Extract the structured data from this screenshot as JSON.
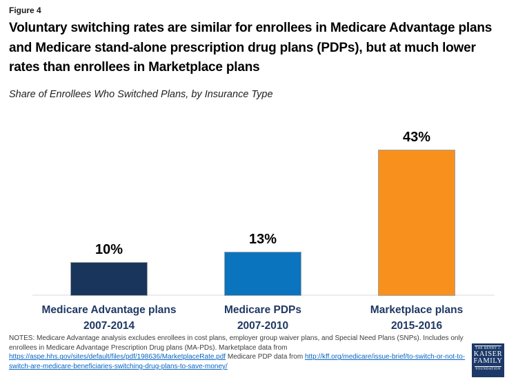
{
  "figure_label": "Figure 4",
  "title": "Voluntary switching rates are similar for enrollees in Medicare Advantage plans and Medicare stand-alone prescription drug plans (PDPs), but at much lower rates than enrollees in Marketplace plans",
  "subtitle": "Share of Enrollees Who Switched Plans, by Insurance Type",
  "chart_data": {
    "type": "bar",
    "title": "Share of Enrollees Who Switched Plans, by Insurance Type",
    "categories": [
      "Medicare Advantage plans 2007-2014",
      "Medicare PDPs 2007-2010",
      "Marketplace plans 2015-2016"
    ],
    "values": [
      10,
      13,
      43
    ],
    "value_labels": [
      "10%",
      "13%",
      "43%"
    ],
    "xlabel": "",
    "ylabel": "",
    "ylim": [
      0,
      47
    ],
    "grid": false,
    "legend": false,
    "bar_colors": [
      "#19355C",
      "#0B74BE",
      "#F8901D"
    ]
  },
  "bars": [
    {
      "label": "Medicare Advantage plans",
      "sublabel": "2007-2014",
      "value": 10,
      "value_label": "10%",
      "color": "#19355C"
    },
    {
      "label": "Medicare PDPs",
      "sublabel": "2007-2010",
      "value": 13,
      "value_label": "13%",
      "color": "#0B74BE"
    },
    {
      "label": "Marketplace plans",
      "sublabel": "2015-2016",
      "value": 43,
      "value_label": "43%",
      "color": "#F8901D"
    }
  ],
  "notes": {
    "text_before_link1": "NOTES: Medicare Advantage analysis excludes enrollees in cost plans, employer group waiver plans, and Special Need Plans (SNPs). Includes only enrollees in Medicare Advantage Prescription Drug plans (MA-PDs). Marketplace data from ",
    "link1": "https://aspe.hhs.gov/sites/default/files/pdf/198636/MarketplaceRate.pdf",
    "text_between_links": "  Medicare PDP data from ",
    "link2": "http://kff.org/medicare/issue-brief/to-switch-or-not-to-switch-are-medicare-beneficiaries-switching-drug-plans-to-save-money/"
  },
  "logo": {
    "top_text": "THE HENRY J.",
    "name_line1": "KAISER",
    "name_line2": "FAMILY",
    "bottom_text": "FOUNDATION",
    "bg_color": "#1C3968"
  },
  "colors": {
    "category_label_navy": "#1F3864",
    "link_blue": "#0563C1",
    "axis_gray": "#ECECEC",
    "bar_border_gray": "#A3A3A3"
  }
}
